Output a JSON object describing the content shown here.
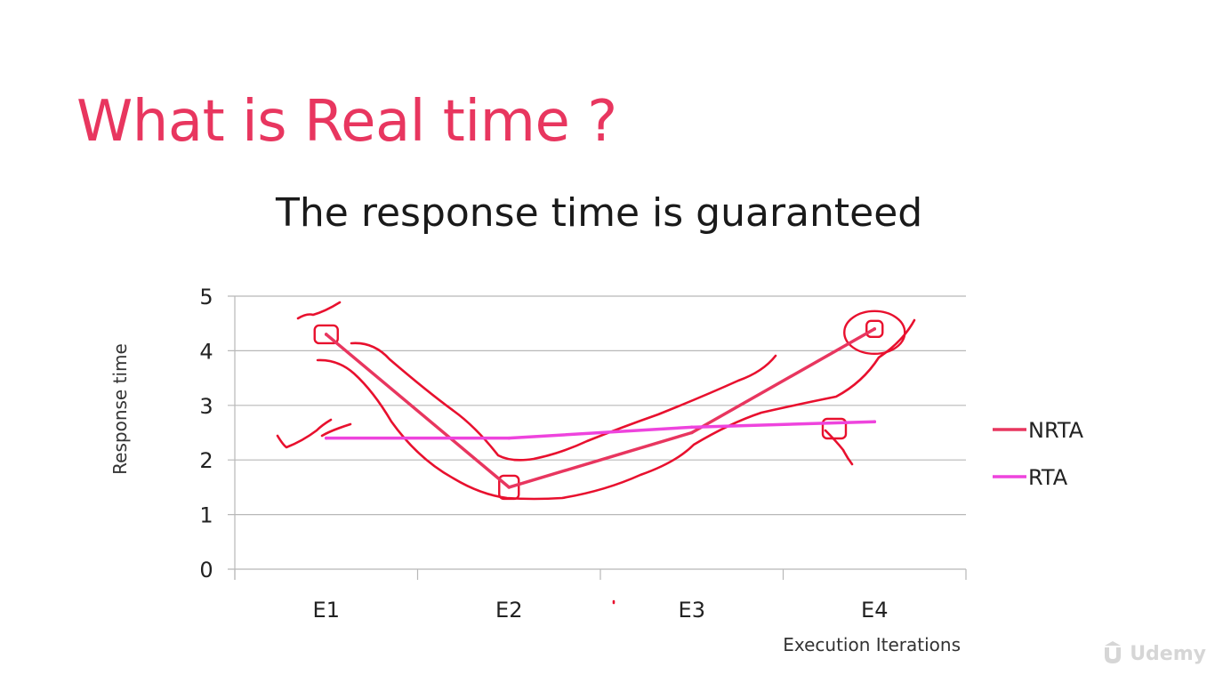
{
  "slide": {
    "title": "What is Real time ?",
    "subtitle": "The response time is guaranteed"
  },
  "watermark": {
    "text": "Udemy",
    "icon": "udemy-logo-icon"
  },
  "chart_data": {
    "type": "line",
    "categories": [
      "E1",
      "E2",
      "E3",
      "E4"
    ],
    "series": [
      {
        "name": "NRTA",
        "values": [
          4.3,
          1.5,
          2.5,
          4.4
        ],
        "color": "#e8365f"
      },
      {
        "name": "RTA",
        "values": [
          2.4,
          2.4,
          2.6,
          2.7
        ],
        "color": "#ee44dd"
      }
    ],
    "xlabel": "Execution Iterations",
    "ylabel": "Response time",
    "ylim": [
      0,
      5
    ],
    "yticks": [
      0,
      1,
      2,
      3,
      4,
      5
    ],
    "grid": true,
    "legend": "right",
    "annotation_color": "#e8102e"
  }
}
